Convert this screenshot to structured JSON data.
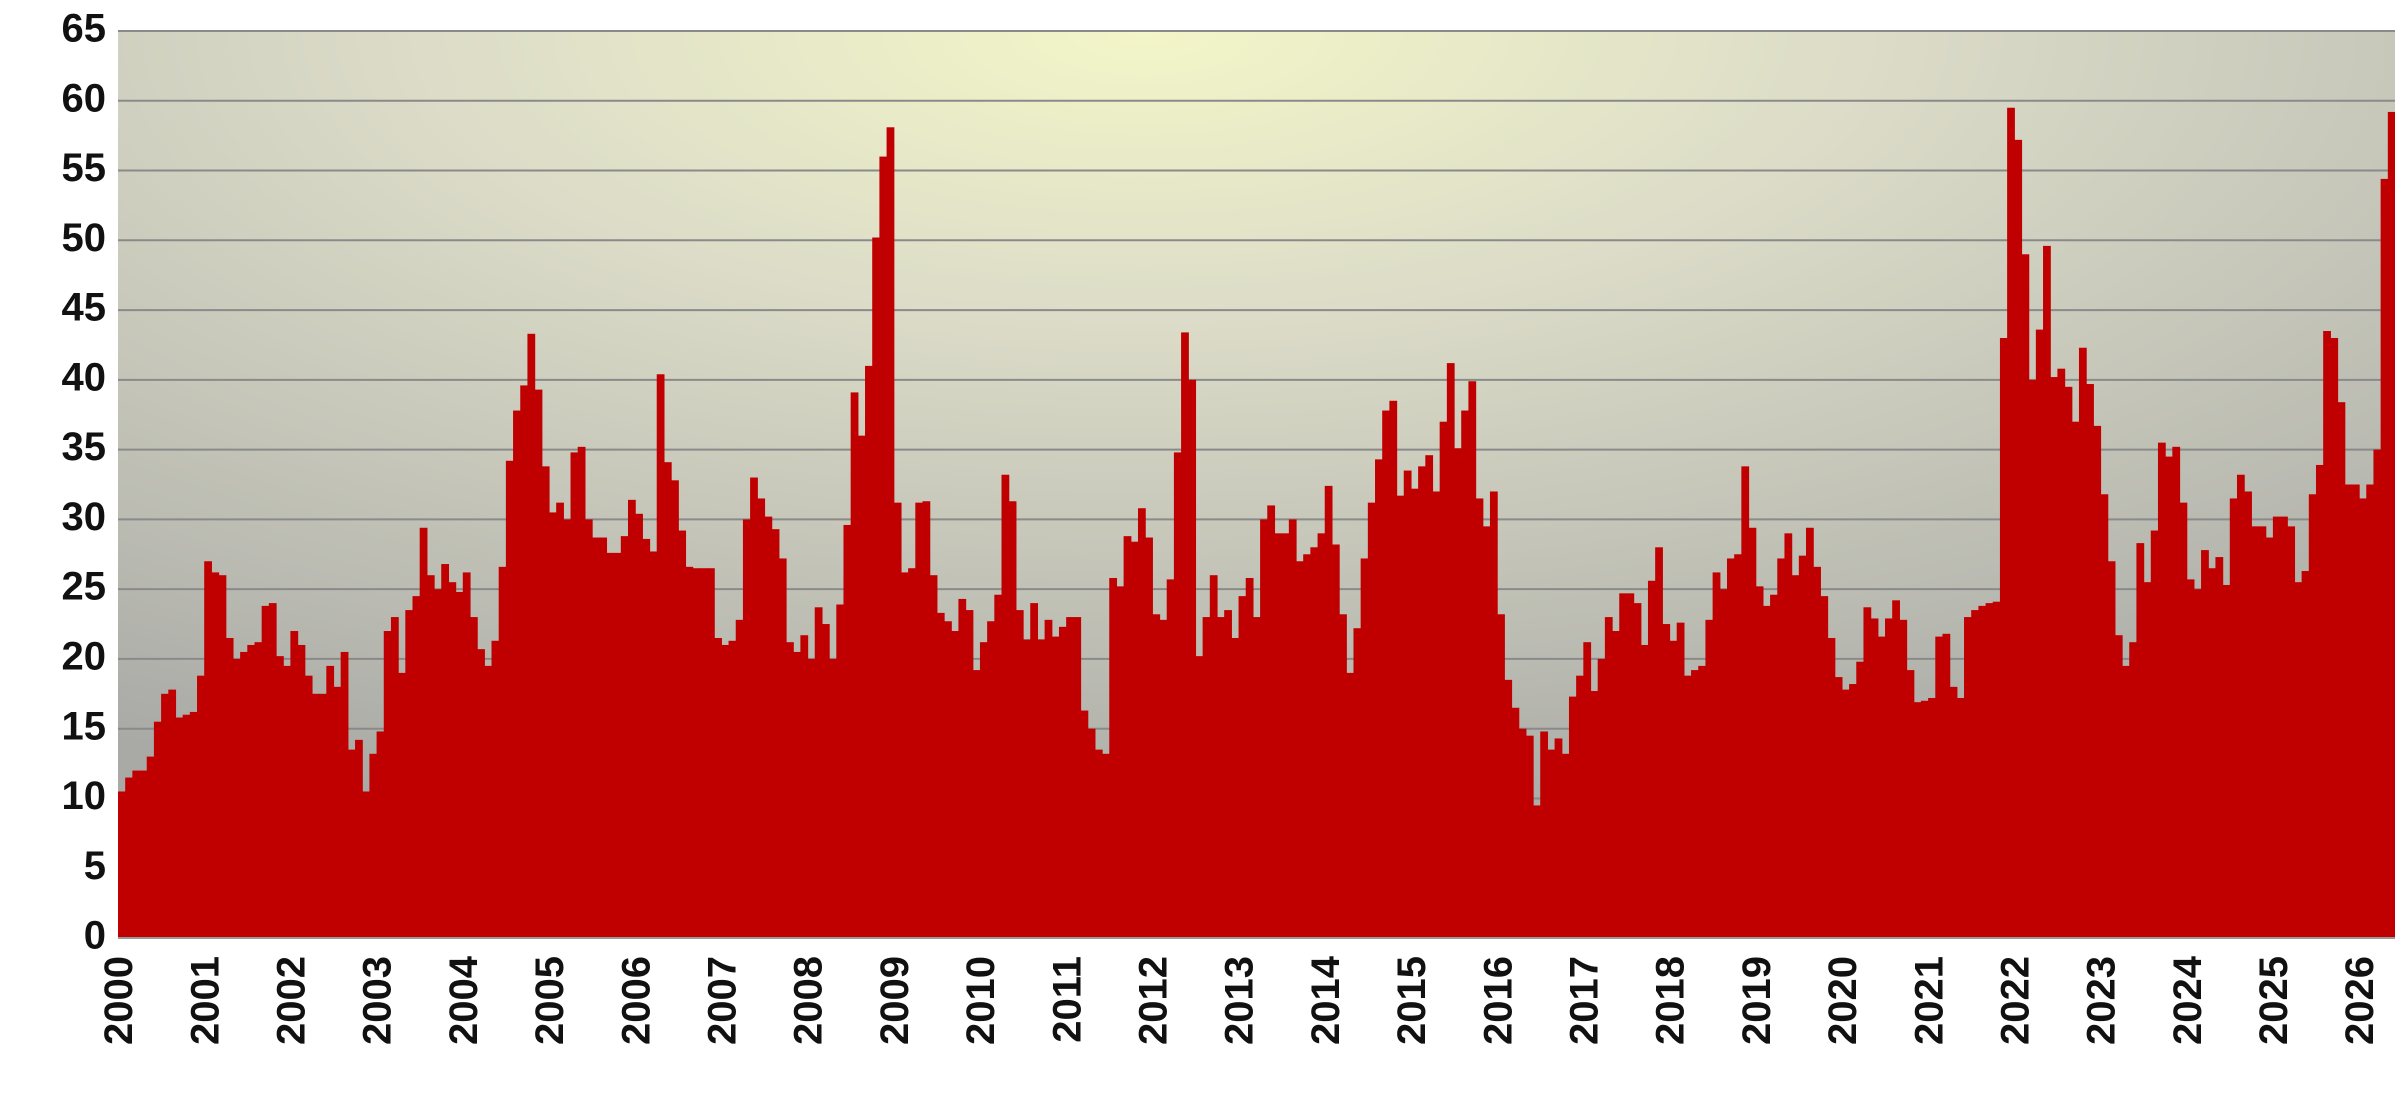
{
  "chart_data": {
    "type": "bar",
    "color": "#c00000",
    "grid": true,
    "ylim": [
      0,
      65
    ],
    "yticks": [
      0,
      5,
      10,
      15,
      20,
      25,
      30,
      35,
      40,
      45,
      50,
      55,
      60,
      65
    ],
    "categories": [
      "2000",
      null,
      null,
      null,
      null,
      null,
      null,
      null,
      null,
      null,
      null,
      null,
      "2001",
      null,
      null,
      null,
      null,
      null,
      null,
      null,
      null,
      null,
      null,
      null,
      "2002",
      null,
      null,
      null,
      null,
      null,
      null,
      null,
      null,
      null,
      null,
      null,
      "2003",
      null,
      null,
      null,
      null,
      null,
      null,
      null,
      null,
      null,
      null,
      null,
      "2004",
      null,
      null,
      null,
      null,
      null,
      null,
      null,
      null,
      null,
      null,
      null,
      "2005",
      null,
      null,
      null,
      null,
      null,
      null,
      null,
      null,
      null,
      null,
      null,
      "2006",
      null,
      null,
      null,
      null,
      null,
      null,
      null,
      null,
      null,
      null,
      null,
      "2007",
      null,
      null,
      null,
      null,
      null,
      null,
      null,
      null,
      null,
      null,
      null,
      "2008",
      null,
      null,
      null,
      null,
      null,
      null,
      null,
      null,
      null,
      null,
      null,
      "2009",
      null,
      null,
      null,
      null,
      null,
      null,
      null,
      null,
      null,
      null,
      null,
      "2010",
      null,
      null,
      null,
      null,
      null,
      null,
      null,
      null,
      null,
      null,
      null,
      "2011",
      null,
      null,
      null,
      null,
      null,
      null,
      null,
      null,
      null,
      null,
      null,
      "2012",
      null,
      null,
      null,
      null,
      null,
      null,
      null,
      null,
      null,
      null,
      null,
      "2013",
      null,
      null,
      null,
      null,
      null,
      null,
      null,
      null,
      null,
      null,
      null,
      "2014",
      null,
      null,
      null,
      null,
      null,
      null,
      null,
      null,
      null,
      null,
      null,
      "2015",
      null,
      null,
      null,
      null,
      null,
      null,
      null,
      null,
      null,
      null,
      null,
      "2016",
      null,
      null,
      null,
      null,
      null,
      null,
      null,
      null,
      null,
      null,
      null,
      "2017",
      null,
      null,
      null,
      null,
      null,
      null,
      null,
      null,
      null,
      null,
      null,
      "2018",
      null,
      null,
      null,
      null,
      null,
      null,
      null,
      null,
      null,
      null,
      null,
      "2019",
      null,
      null,
      null,
      null,
      null,
      null,
      null,
      null,
      null,
      null,
      null,
      "2020",
      null,
      null,
      null,
      null,
      null,
      null,
      null,
      null,
      null,
      null,
      null,
      "2021",
      null,
      null,
      null,
      null,
      null,
      null,
      null,
      null,
      null,
      null,
      null,
      "2022",
      null,
      null,
      null,
      null,
      null,
      null,
      null,
      null,
      null,
      null,
      null,
      "2023",
      null,
      null,
      null,
      null,
      null,
      null,
      null,
      null,
      null,
      null,
      null,
      "2024",
      null,
      null,
      null,
      null,
      null,
      null,
      null,
      null,
      null,
      null,
      null,
      "2025",
      null,
      null,
      null,
      null,
      null,
      null,
      null,
      null,
      null,
      null,
      null,
      "2026",
      null,
      null,
      null,
      null
    ],
    "values": [
      10.5,
      11.5,
      12,
      12,
      13,
      15.5,
      17.5,
      17.8,
      15.8,
      16,
      16.2,
      18.8,
      27,
      26.2,
      26,
      21.5,
      20,
      20.5,
      21,
      21.2,
      23.8,
      24,
      20.2,
      19.5,
      22,
      21,
      18.8,
      17.5,
      17.5,
      19.5,
      18,
      20.5,
      13.5,
      14.2,
      10.5,
      13.2,
      14.8,
      22,
      23,
      19,
      23.5,
      24.5,
      29.4,
      26,
      25,
      26.8,
      25.5,
      24.8,
      26.2,
      23,
      20.7,
      19.5,
      21.3,
      26.6,
      34.2,
      37.8,
      39.6,
      43.3,
      39.3,
      33.8,
      30.5,
      31.2,
      30,
      34.8,
      35.2,
      30,
      28.7,
      28.7,
      27.6,
      27.6,
      28.8,
      31.4,
      30.4,
      28.6,
      27.7,
      40.4,
      34.1,
      32.8,
      29.2,
      26.6,
      26.5,
      26.5,
      26.5,
      21.5,
      21,
      21.3,
      22.8,
      30,
      33,
      31.5,
      30.2,
      29.3,
      27.2,
      21.2,
      20.5,
      21.7,
      20,
      23.7,
      22.5,
      20,
      23.9,
      29.6,
      39.1,
      36,
      41,
      50.2,
      56,
      58.1,
      31.2,
      26.2,
      26.5,
      31.2,
      31.3,
      26,
      23.3,
      22.7,
      22,
      24.3,
      23.5,
      19.2,
      21.2,
      22.7,
      24.6,
      33.2,
      31.3,
      23.5,
      21.4,
      24,
      21.4,
      22.8,
      21.6,
      22.3,
      23,
      23,
      16.3,
      15,
      13.5,
      13.2,
      25.8,
      25.2,
      28.8,
      28.4,
      30.8,
      28.7,
      23.2,
      22.8,
      25.7,
      34.8,
      43.4,
      40,
      20.2,
      23,
      26,
      23,
      23.5,
      21.5,
      24.5,
      25.8,
      23,
      30,
      31,
      29,
      29,
      30,
      27,
      27.5,
      28,
      29,
      32.4,
      28.2,
      23.2,
      19,
      22.2,
      27.2,
      31.2,
      34.3,
      37.8,
      38.5,
      31.7,
      33.5,
      32.2,
      33.8,
      34.6,
      32,
      37,
      41.2,
      35.1,
      37.8,
      39.9,
      31.5,
      29.5,
      32,
      23.2,
      18.5,
      16.5,
      15,
      14.5,
      9.5,
      14.8,
      13.5,
      14.3,
      13.2,
      17.3,
      18.8,
      21.2,
      17.7,
      20,
      23,
      22,
      24.7,
      24.7,
      24,
      21,
      25.6,
      28,
      22.5,
      21.3,
      22.6,
      18.8,
      19.2,
      19.5,
      22.8,
      26.2,
      25,
      27.2,
      27.5,
      33.8,
      29.4,
      25.2,
      23.8,
      24.6,
      27.2,
      29,
      26,
      27.4,
      29.4,
      26.6,
      24.5,
      21.5,
      18.7,
      17.8,
      18.2,
      19.8,
      23.7,
      22.9,
      21.6,
      22.9,
      24.2,
      22.8,
      19.2,
      16.9,
      17,
      17.2,
      21.6,
      21.8,
      18,
      17.2,
      23,
      23.5,
      23.8,
      24,
      24.1,
      43,
      59.5,
      57.2,
      49,
      40,
      43.6,
      49.6,
      40.2,
      40.8,
      39.5,
      37,
      42.3,
      39.7,
      36.7,
      31.8,
      27,
      21.7,
      19.5,
      21.2,
      28.3,
      25.5,
      29.2,
      35.5,
      34.5,
      35.2,
      31.2,
      25.7,
      25,
      27.8,
      26.5,
      27.3,
      25.3,
      31.5,
      33.2,
      32,
      29.5,
      29.5,
      28.7,
      30.2,
      30.2,
      29.5,
      25.5,
      26.3,
      31.8,
      33.9,
      43.5,
      43,
      38.4,
      32.5,
      32.5,
      31.5,
      32.5,
      35,
      54.4,
      59.2
    ]
  }
}
